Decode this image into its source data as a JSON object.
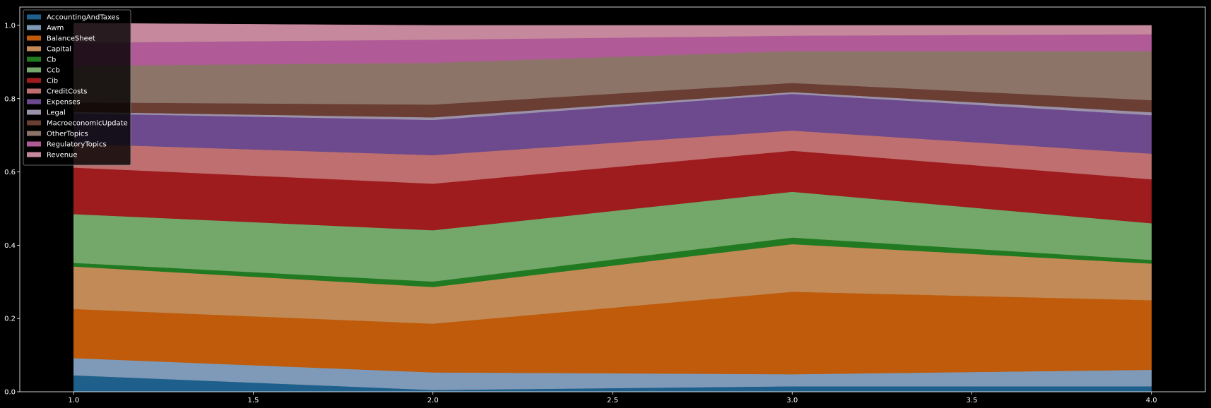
{
  "chart_data": {
    "type": "area",
    "stacked": true,
    "title": "",
    "xlabel": "",
    "ylabel": "",
    "x": [
      1.0,
      2.0,
      3.0,
      4.0
    ],
    "xlim": [
      0.85,
      4.15
    ],
    "ylim": [
      0,
      1.05
    ],
    "x_ticks": [
      1.0,
      1.5,
      2.0,
      2.5,
      3.0,
      3.5,
      4.0
    ],
    "x_tick_labels": [
      "1.0",
      "1.5",
      "2.0",
      "2.5",
      "3.0",
      "3.5",
      "4.0"
    ],
    "y_ticks": [
      0.0,
      0.2,
      0.4,
      0.6,
      0.8,
      1.0
    ],
    "y_tick_labels": [
      "0.0",
      "0.2",
      "0.4",
      "0.6",
      "0.8",
      "1.0"
    ],
    "grid": false,
    "legend_position": "top-left",
    "background": "#000000",
    "series": [
      {
        "name": "AccountingAndTaxes",
        "color": "#1f5f8b",
        "values": [
          0.045,
          0.005,
          0.015,
          0.015
        ]
      },
      {
        "name": "Awm",
        "color": "#7f9ab8",
        "values": [
          0.047,
          0.048,
          0.033,
          0.045
        ]
      },
      {
        "name": "BalanceSheet",
        "color": "#bf5b0a",
        "values": [
          0.134,
          0.133,
          0.225,
          0.19
        ]
      },
      {
        "name": "Capital",
        "color": "#c28a56",
        "values": [
          0.116,
          0.1,
          0.13,
          0.1
        ]
      },
      {
        "name": "Cb",
        "color": "#217a21",
        "values": [
          0.01,
          0.015,
          0.018,
          0.01
        ]
      },
      {
        "name": "Ccb",
        "color": "#73a86a",
        "values": [
          0.133,
          0.14,
          0.125,
          0.1
        ]
      },
      {
        "name": "Cib",
        "color": "#9e1b1e",
        "values": [
          0.127,
          0.127,
          0.112,
          0.12
        ]
      },
      {
        "name": "CreditCosts",
        "color": "#bf6f6f",
        "values": [
          0.065,
          0.078,
          0.055,
          0.07
        ]
      },
      {
        "name": "Expenses",
        "color": "#6d4a8e",
        "values": [
          0.083,
          0.096,
          0.1,
          0.105
        ]
      },
      {
        "name": "Legal",
        "color": "#9b92aa",
        "values": [
          0.004,
          0.007,
          0.005,
          0.008
        ]
      },
      {
        "name": "MacroeconomicUpdate",
        "color": "#6b3e33",
        "values": [
          0.026,
          0.035,
          0.025,
          0.033
        ]
      },
      {
        "name": "OtherTopics",
        "color": "#8d7469",
        "values": [
          0.1,
          0.114,
          0.087,
          0.134
        ]
      },
      {
        "name": "RegulatoryTopics",
        "color": "#b05b97",
        "values": [
          0.063,
          0.063,
          0.042,
          0.046
        ]
      },
      {
        "name": "Revenue",
        "color": "#c6889c",
        "values": [
          0.053,
          0.039,
          0.028,
          0.024
        ]
      }
    ]
  }
}
